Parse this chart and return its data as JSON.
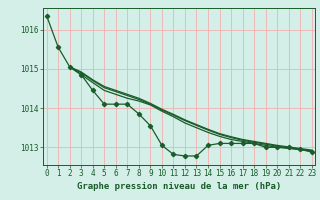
{
  "background_color": "#d4eee8",
  "grid_color": "#f0b0b0",
  "line_color": "#1a5c2a",
  "title": "Graphe pression niveau de la mer (hPa)",
  "xlim": [
    -0.3,
    23.3
  ],
  "ylim": [
    1012.55,
    1016.55
  ],
  "yticks": [
    1013,
    1014,
    1015,
    1016
  ],
  "xticks": [
    0,
    1,
    2,
    3,
    4,
    5,
    6,
    7,
    8,
    9,
    10,
    11,
    12,
    13,
    14,
    15,
    16,
    17,
    18,
    19,
    20,
    21,
    22,
    23
  ],
  "main_x": [
    0,
    1,
    2,
    3,
    4,
    5,
    6,
    7,
    8,
    9,
    10,
    11,
    12,
    13,
    14,
    15,
    16,
    17,
    18,
    19,
    20,
    21,
    22,
    23
  ],
  "main_y": [
    1016.35,
    1015.55,
    1015.05,
    1014.85,
    1014.45,
    1014.1,
    1014.1,
    1014.1,
    1013.85,
    1013.55,
    1013.05,
    1012.82,
    1012.78,
    1012.78,
    1013.05,
    1013.1,
    1013.1,
    1013.1,
    1013.1,
    1013.0,
    1013.0,
    1013.0,
    1012.95,
    1012.88
  ],
  "line2_x": [
    2,
    3,
    4,
    5,
    6,
    7,
    8,
    9,
    10,
    11,
    12,
    13,
    14,
    15,
    16,
    17,
    18,
    19,
    20,
    21,
    22,
    23
  ],
  "line2_y": [
    1015.05,
    1014.85,
    1014.65,
    1014.45,
    1014.35,
    1014.25,
    1014.18,
    1014.08,
    1013.92,
    1013.78,
    1013.62,
    1013.5,
    1013.38,
    1013.28,
    1013.2,
    1013.15,
    1013.1,
    1013.05,
    1013.0,
    1012.97,
    1012.94,
    1012.9
  ],
  "line3_x": [
    2,
    3,
    4,
    5,
    6,
    7,
    8,
    9,
    10,
    11,
    12,
    13,
    14,
    15,
    16,
    17,
    18,
    19,
    20,
    21,
    22,
    23
  ],
  "line3_y": [
    1015.05,
    1014.9,
    1014.7,
    1014.52,
    1014.42,
    1014.32,
    1014.22,
    1014.1,
    1013.95,
    1013.82,
    1013.68,
    1013.56,
    1013.44,
    1013.33,
    1013.25,
    1013.18,
    1013.13,
    1013.08,
    1013.03,
    1012.99,
    1012.95,
    1012.91
  ],
  "line4_x": [
    2,
    3,
    4,
    5,
    6,
    7,
    8,
    9,
    10,
    11,
    12,
    13,
    14,
    15,
    16,
    17,
    18,
    19,
    20,
    21,
    22,
    23
  ],
  "line4_y": [
    1015.05,
    1014.92,
    1014.72,
    1014.55,
    1014.45,
    1014.35,
    1014.25,
    1014.12,
    1013.97,
    1013.84,
    1013.7,
    1013.58,
    1013.46,
    1013.35,
    1013.27,
    1013.2,
    1013.15,
    1013.1,
    1013.05,
    1013.01,
    1012.97,
    1012.93
  ]
}
